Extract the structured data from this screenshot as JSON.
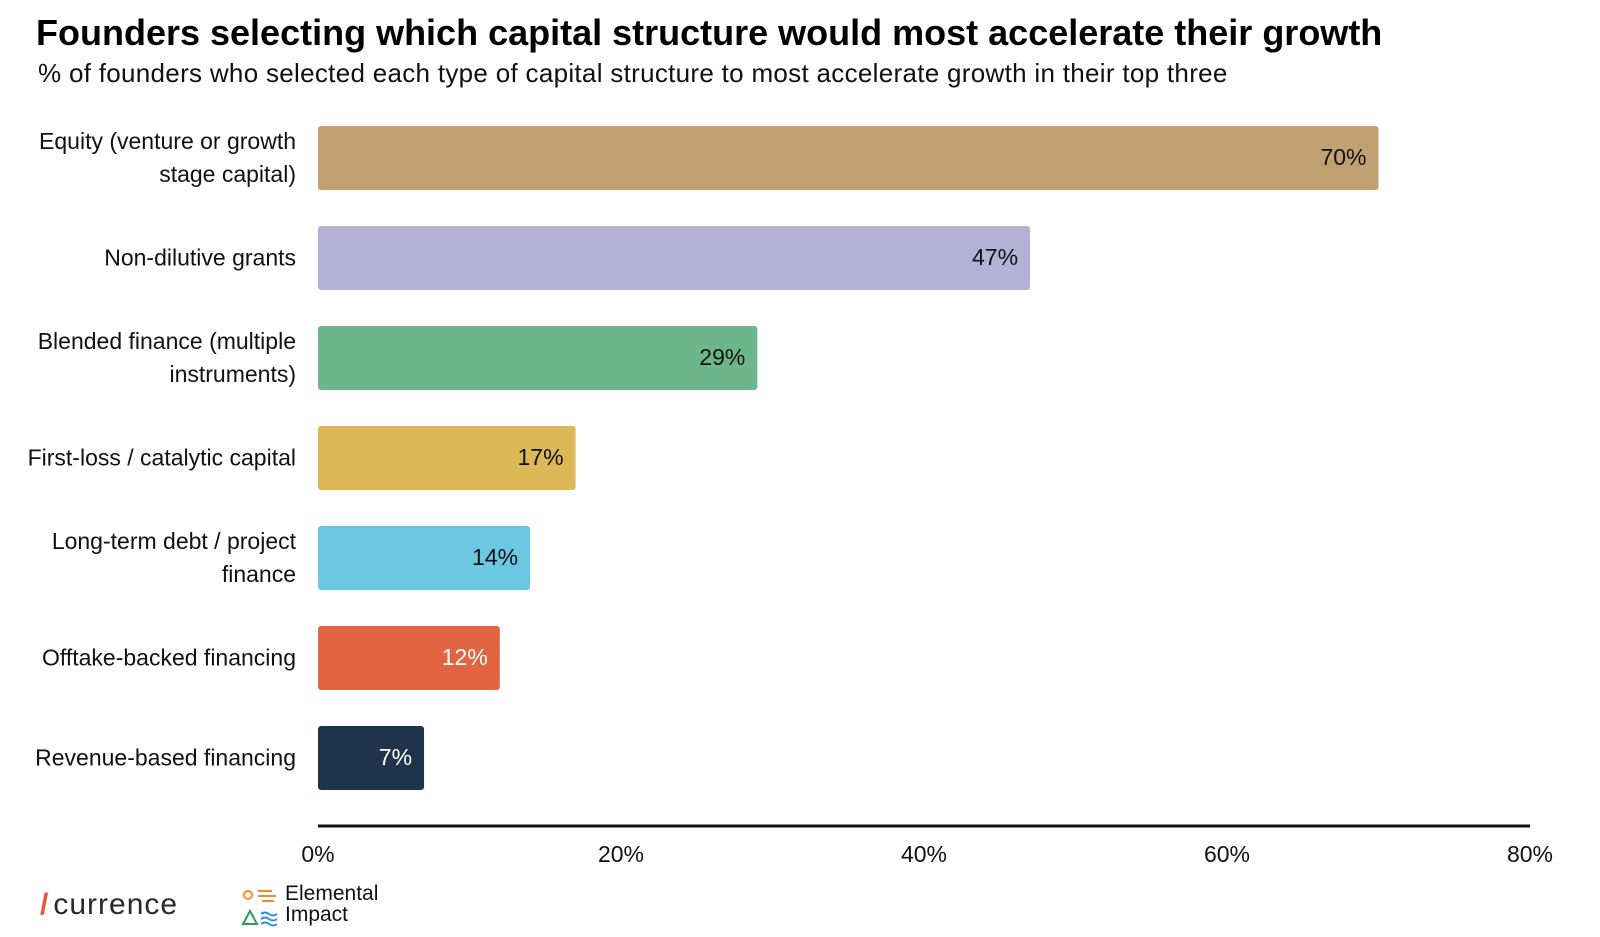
{
  "chart_data": {
    "type": "hbar",
    "title": "Founders selecting which capital structure would most accelerate their growth",
    "subtitle": "% of founders who selected each type of capital structure to most accelerate growth in their top three",
    "categories": [
      "Equity (venture or growth stage capital)",
      "Non-dilutive grants",
      "Blended finance (multiple instruments)",
      "First-loss / catalytic capital",
      "Long-term debt / project finance",
      "Offtake-backed financing",
      "Revenue-based financing"
    ],
    "values": [
      70,
      47,
      29,
      17,
      14,
      12,
      7
    ],
    "value_labels": [
      "70%",
      "47%",
      "29%",
      "17%",
      "14%",
      "12%",
      "7%"
    ],
    "colors": [
      "#c1a172",
      "#b5b0d6",
      "#6db68b",
      "#dcb857",
      "#6bc7e2",
      "#e06540",
      "#1f334b"
    ],
    "label_colors": [
      "#111111",
      "#111111",
      "#111111",
      "#111111",
      "#111111",
      "#ffffff",
      "#ffffff"
    ],
    "xlim": [
      0,
      80
    ],
    "xticks": [
      {
        "value": 0,
        "label": "0%"
      },
      {
        "value": 20,
        "label": "20%"
      },
      {
        "value": 40,
        "label": "40%"
      },
      {
        "value": 60,
        "label": "60%"
      },
      {
        "value": 80,
        "label": "80%"
      }
    ],
    "grid": false,
    "credits": [
      "currence",
      "Elemental",
      "Impact"
    ]
  }
}
